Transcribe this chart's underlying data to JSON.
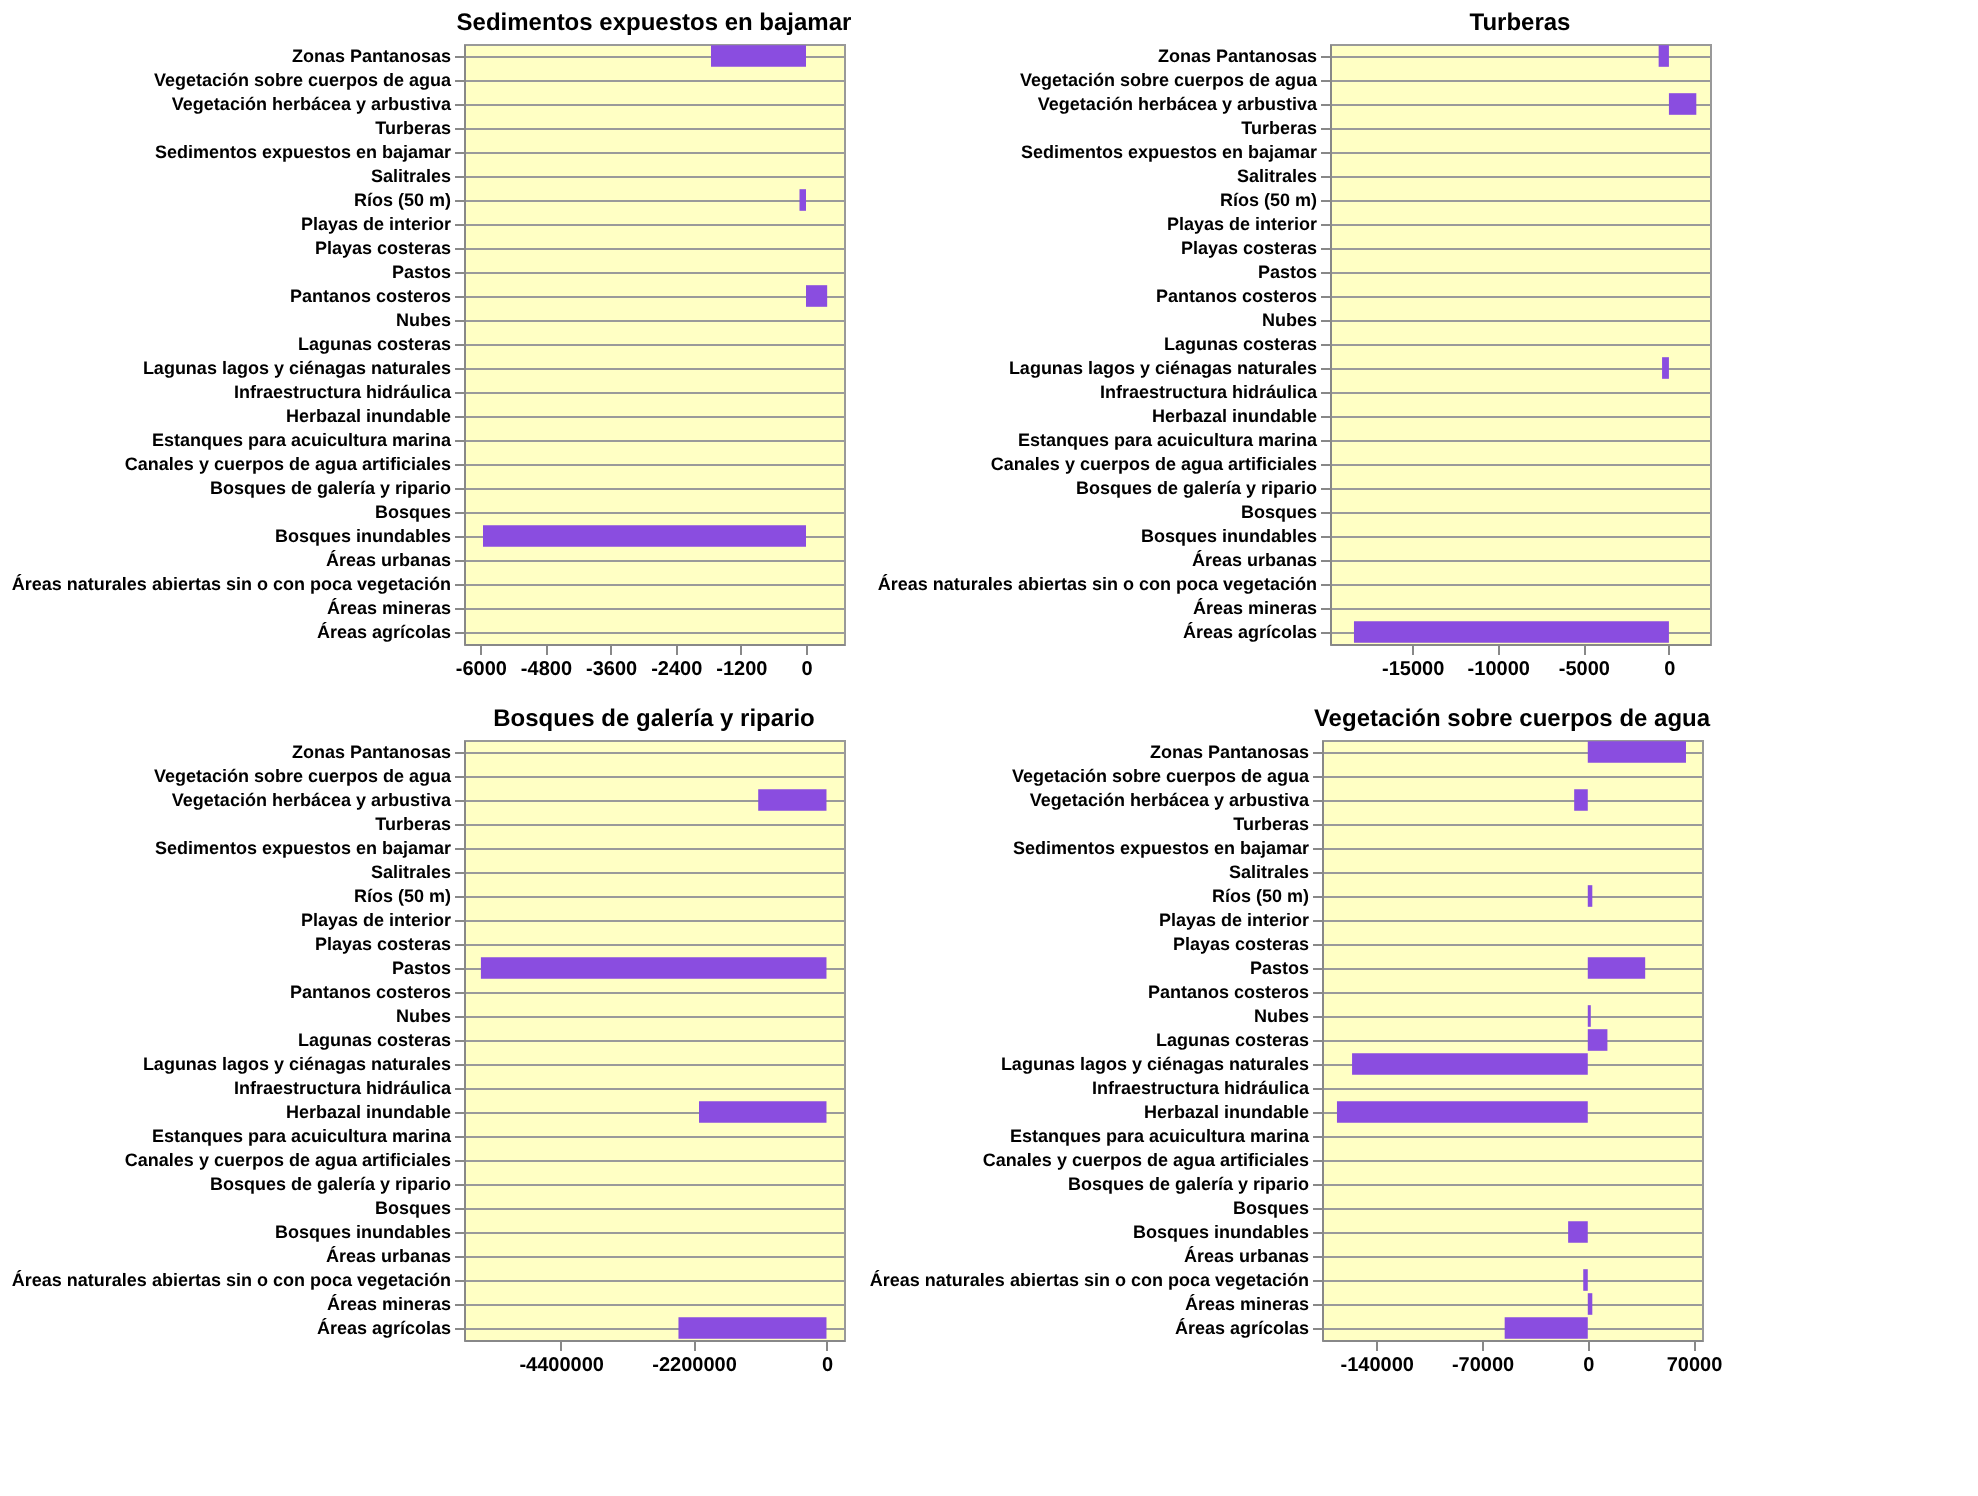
{
  "chart_data": [
    {
      "type": "bar",
      "orientation": "horizontal",
      "title": "Sedimentos expuestos en bajamar",
      "categories": [
        "Zonas Pantanosas",
        "Vegetación sobre cuerpos de agua",
        "Vegetación herbácea y arbustiva",
        "Turberas",
        "Sedimentos expuestos en bajamar",
        "Salitrales",
        "Ríos (50 m)",
        "Playas de interior",
        "Playas costeras",
        "Pastos",
        "Pantanos costeros",
        "Nubes",
        "Lagunas costeras",
        "Lagunas  lagos y ciénagas naturales",
        "Infraestructura hidráulica",
        "Herbazal inundable",
        "Estanques para acuicultura marina",
        "Canales y cuerpos de agua artificiales",
        "Bosques de galería y ripario",
        "Bosques",
        "Bosques inundables",
        "Áreas urbanas",
        "Áreas naturales abiertas sin o con poca vegetación",
        "Áreas mineras",
        "Áreas agrícolas"
      ],
      "values": [
        -1750,
        0,
        0,
        0,
        0,
        0,
        -120,
        0,
        0,
        0,
        390,
        0,
        0,
        0,
        0,
        0,
        0,
        0,
        0,
        0,
        -5950,
        0,
        0,
        0,
        0
      ],
      "color": "#8a4de0",
      "xlim": [
        -6300,
        700
      ],
      "xticks": [
        -6000,
        -4800,
        -3600,
        -2400,
        -1200,
        0
      ],
      "grid": "y"
    },
    {
      "type": "bar",
      "orientation": "horizontal",
      "title": "Turberas",
      "categories": [
        "Zonas Pantanosas",
        "Vegetación sobre cuerpos de agua",
        "Vegetación herbácea y arbustiva",
        "Turberas",
        "Sedimentos expuestos en bajamar",
        "Salitrales",
        "Ríos (50 m)",
        "Playas de interior",
        "Playas costeras",
        "Pastos",
        "Pantanos costeros",
        "Nubes",
        "Lagunas costeras",
        "Lagunas  lagos y ciénagas naturales",
        "Infraestructura hidráulica",
        "Herbazal inundable",
        "Estanques para acuicultura marina",
        "Canales y cuerpos de agua artificiales",
        "Bosques de galería y ripario",
        "Bosques",
        "Bosques inundables",
        "Áreas urbanas",
        "Áreas naturales abiertas sin o con poca vegetación",
        "Áreas mineras",
        "Áreas agrícolas"
      ],
      "values": [
        -600,
        0,
        1600,
        0,
        0,
        0,
        0,
        0,
        0,
        0,
        0,
        0,
        0,
        -400,
        0,
        0,
        0,
        0,
        0,
        0,
        0,
        0,
        0,
        0,
        -18400
      ],
      "color": "#8a4de0",
      "xlim": [
        -19800,
        2400
      ],
      "xticks": [
        -15000,
        -10000,
        -5000,
        0
      ],
      "grid": "y"
    },
    {
      "type": "bar",
      "orientation": "horizontal",
      "title": "Bosques de galería y ripario",
      "categories": [
        "Zonas Pantanosas",
        "Vegetación sobre cuerpos de agua",
        "Vegetación herbácea y arbustiva",
        "Turberas",
        "Sedimentos expuestos en bajamar",
        "Salitrales",
        "Ríos (50 m)",
        "Playas de interior",
        "Playas costeras",
        "Pastos",
        "Pantanos costeros",
        "Nubes",
        "Lagunas costeras",
        "Lagunas  lagos y ciénagas naturales",
        "Infraestructura hidráulica",
        "Herbazal inundable",
        "Estanques para acuicultura marina",
        "Canales y cuerpos de agua artificiales",
        "Bosques de galería y ripario",
        "Bosques",
        "Bosques inundables",
        "Áreas urbanas",
        "Áreas naturales abiertas sin o con poca vegetación",
        "Áreas mineras",
        "Áreas agrícolas"
      ],
      "values": [
        0,
        0,
        -1130000,
        0,
        0,
        0,
        0,
        0,
        0,
        -5720000,
        0,
        0,
        0,
        0,
        0,
        -2110000,
        0,
        0,
        0,
        0,
        0,
        0,
        0,
        0,
        -2450000
      ],
      "color": "#8a4de0",
      "xlim": [
        -6000000,
        290000
      ],
      "xticks": [
        -4400000,
        -2200000,
        0
      ],
      "grid": "y"
    },
    {
      "type": "bar",
      "orientation": "horizontal",
      "title": "Vegetación sobre cuerpos de agua",
      "categories": [
        "Zonas Pantanosas",
        "Vegetación sobre cuerpos de agua",
        "Vegetación herbácea y arbustiva",
        "Turberas",
        "Sedimentos expuestos en bajamar",
        "Salitrales",
        "Ríos (50 m)",
        "Playas de interior",
        "Playas costeras",
        "Pastos",
        "Pantanos costeros",
        "Nubes",
        "Lagunas costeras",
        "Lagunas  lagos y ciénagas naturales",
        "Infraestructura hidráulica",
        "Herbazal inundable",
        "Estanques para acuicultura marina",
        "Canales y cuerpos de agua artificiales",
        "Bosques de galería y ripario",
        "Bosques",
        "Bosques inundables",
        "Áreas urbanas",
        "Áreas naturales abiertas sin o con poca vegetación",
        "Áreas mineras",
        "Áreas agrícolas"
      ],
      "values": [
        65000,
        0,
        -9000,
        0,
        0,
        0,
        3000,
        0,
        0,
        38000,
        0,
        2000,
        13000,
        -156000,
        0,
        -166000,
        0,
        0,
        0,
        0,
        -13000,
        0,
        -3000,
        3000,
        -55000
      ],
      "color": "#8a4de0",
      "xlim": [
        -175900,
        75600
      ],
      "xticks": [
        -140000,
        -70000,
        0,
        70000
      ],
      "grid": "y"
    }
  ]
}
